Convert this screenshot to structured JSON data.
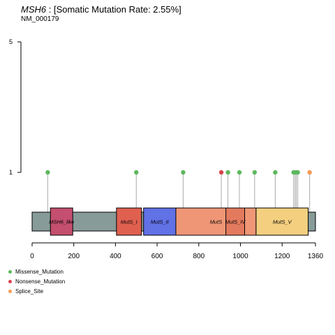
{
  "title": {
    "gene": "MSH6",
    "text": " : [Somatic Mutation Rate: 2.55%]"
  },
  "subtitle": "NM_000179",
  "chart_data": {
    "type": "lollipop",
    "protein_length": 1360,
    "x_ticks": [
      "0",
      "200",
      "400",
      "600",
      "800",
      "1000",
      "1200",
      "1360"
    ],
    "y_ticks": [
      "1",
      "5"
    ],
    "y_range": [
      1,
      5
    ],
    "backbone_color": "#879b99",
    "domains": [
      {
        "name": "MSH6_like",
        "start": 88,
        "end": 195,
        "color": "#c44f6e"
      },
      {
        "name": "MutS_I",
        "start": 405,
        "end": 525,
        "color": "#e06050"
      },
      {
        "name": "MutS_II",
        "start": 535,
        "end": 690,
        "color": "#6171e6"
      },
      {
        "name": "MutS",
        "start": 690,
        "end": 1075,
        "color": "#ef9676"
      },
      {
        "name": "MutS_IV",
        "start": 930,
        "end": 1020,
        "color": "#e37a5e"
      },
      {
        "name": "MutS_V",
        "start": 1075,
        "end": 1325,
        "color": "#f3cf7f"
      }
    ],
    "mutations": [
      {
        "position": 75,
        "count": 1,
        "type": "Missense_Mutation"
      },
      {
        "position": 500,
        "count": 1,
        "type": "Missense_Mutation"
      },
      {
        "position": 725,
        "count": 1,
        "type": "Missense_Mutation"
      },
      {
        "position": 908,
        "count": 1,
        "type": "Nonsense_Mutation"
      },
      {
        "position": 940,
        "count": 1,
        "type": "Missense_Mutation"
      },
      {
        "position": 995,
        "count": 1,
        "type": "Missense_Mutation"
      },
      {
        "position": 1068,
        "count": 1,
        "type": "Missense_Mutation"
      },
      {
        "position": 1167,
        "count": 1,
        "type": "Missense_Mutation"
      },
      {
        "position": 1255,
        "count": 1,
        "type": "Missense_Mutation"
      },
      {
        "position": 1262,
        "count": 1,
        "type": "Missense_Mutation"
      },
      {
        "position": 1268,
        "count": 1,
        "type": "Missense_Mutation"
      },
      {
        "position": 1275,
        "count": 1,
        "type": "Missense_Mutation"
      },
      {
        "position": 1332,
        "count": 1,
        "type": "Splice_Site"
      }
    ],
    "legend": [
      {
        "label": "Missense_Mutation",
        "color": "#5cb85c"
      },
      {
        "label": "Nonsense_Mutation",
        "color": "#d9434e"
      },
      {
        "label": "Splice_Site",
        "color": "#f59a53"
      }
    ]
  }
}
